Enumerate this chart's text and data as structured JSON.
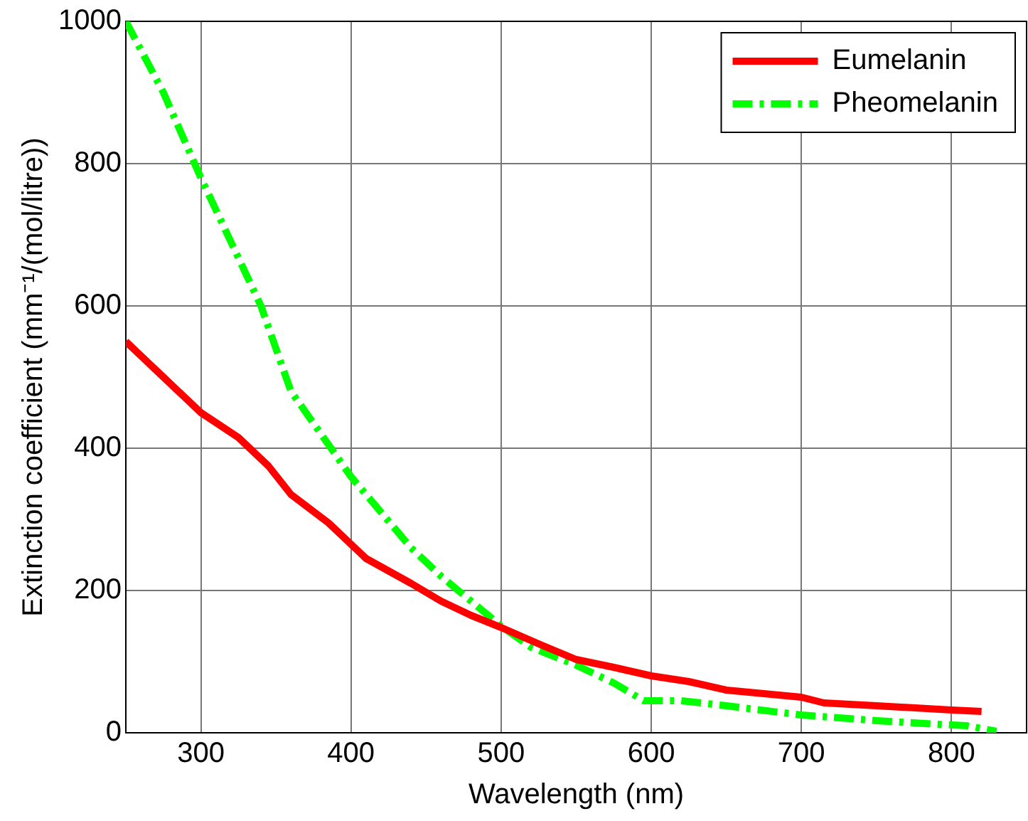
{
  "chart_data": {
    "type": "line",
    "xlabel": "Wavelength (nm)",
    "ylabel": "Extinction coefficient (mm⁻¹/(mol/litre))",
    "xlim": [
      250,
      850
    ],
    "xticks": [
      300,
      400,
      500,
      600,
      700,
      800
    ],
    "ylim": [
      0,
      1000
    ],
    "yticks": [
      0,
      200,
      400,
      600,
      800,
      1000
    ],
    "grid": true,
    "legend": "top right",
    "marker": "none",
    "series": [
      {
        "name": "Eumelanin",
        "color": "#ff0000",
        "line_style": "solid",
        "x": [
          250,
          275,
          300,
          325,
          345,
          360,
          385,
          410,
          440,
          460,
          480,
          500,
          525,
          550,
          575,
          600,
          625,
          650,
          700,
          715,
          750,
          800,
          820
        ],
        "values": [
          550,
          500,
          450,
          415,
          375,
          335,
          295,
          245,
          210,
          185,
          165,
          148,
          125,
          103,
          92,
          80,
          72,
          60,
          50,
          42,
          38,
          32,
          30
        ]
      },
      {
        "name": "Pheomelanin",
        "color": "#00ff00",
        "line_style": "dashed",
        "x": [
          250,
          275,
          300,
          320,
          340,
          360,
          380,
          400,
          420,
          440,
          460,
          480,
          500,
          520,
          550,
          575,
          595,
          620,
          650,
          700,
          750,
          790,
          810,
          830
        ],
        "values": [
          1000,
          900,
          780,
          690,
          600,
          480,
          420,
          360,
          310,
          260,
          220,
          185,
          150,
          120,
          95,
          70,
          45,
          45,
          38,
          25,
          17,
          12,
          10,
          2
        ]
      }
    ]
  }
}
